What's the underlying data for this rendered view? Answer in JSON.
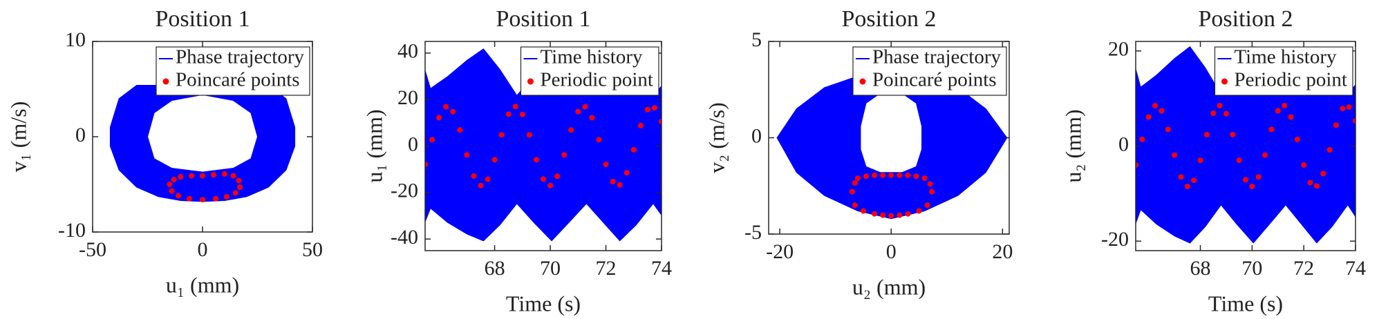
{
  "chart_data": [
    {
      "type": "phase",
      "title": "Position 1",
      "xlabel": "u₁ (mm)",
      "ylabel": "v₁ (m/s)",
      "xlim": [
        -50,
        50
      ],
      "ylim": [
        -10,
        10
      ],
      "xticks": [
        -50,
        0,
        50
      ],
      "yticks": [
        -10,
        0,
        10
      ],
      "legend": "upper right",
      "series": [
        {
          "name": "Phase trajectory",
          "color": "#0000ff",
          "style": "region",
          "x": [
            -30,
            -38,
            -42,
            -42,
            -38,
            -30,
            -20,
            -10,
            0,
            10,
            20,
            30,
            38,
            42,
            42,
            38,
            30,
            null,
            -25,
            -22,
            -14,
            0,
            14,
            22,
            25,
            22,
            14,
            0,
            -14,
            -22
          ],
          "values": [
            5.4,
            4,
            1,
            -1,
            -3.5,
            -5.3,
            -6.3,
            -6.7,
            -6.8,
            -6.7,
            -6.3,
            -5.3,
            -3.5,
            -1,
            1,
            4,
            5.4,
            null,
            0,
            2.5,
            3.8,
            4.4,
            3.8,
            2.5,
            0,
            -2.3,
            -3.3,
            -3.7,
            -3.3,
            -2.3
          ]
        },
        {
          "name": "Poincaré points",
          "color": "#ff0000",
          "style": "points",
          "x": [
            -15,
            -13,
            -10,
            -5,
            0,
            5,
            10,
            14,
            16.5,
            17,
            15,
            11,
            6,
            0,
            -6,
            -11,
            -14
          ],
          "values": [
            -5,
            -4.5,
            -4.2,
            -4.1,
            -4.1,
            -4.0,
            -3.9,
            -4.1,
            -4.6,
            -5.3,
            -5.9,
            -6.3,
            -6.5,
            -6.6,
            -6.5,
            -6.2,
            -5.7
          ]
        }
      ]
    },
    {
      "type": "time",
      "title": "Position 1",
      "xlabel": "Time (s)",
      "ylabel": "u₁ (mm)",
      "xlim": [
        65.5,
        74
      ],
      "ylim": [
        -45,
        45
      ],
      "xticks": [
        68,
        70,
        72,
        74
      ],
      "yticks": [
        -40,
        -20,
        0,
        20,
        40
      ],
      "legend": "upper right",
      "series": [
        {
          "name": "Time history",
          "color": "#0000ff",
          "style": "region",
          "x": [
            65.5,
            65.7,
            66.3,
            67.0,
            67.6,
            68.2,
            68.8,
            69.4,
            70.05,
            70.6,
            71.3,
            71.9,
            72.5,
            73.1,
            73.7,
            74.0
          ],
          "values": [
            33,
            25,
            30,
            37,
            42,
            33,
            22,
            30,
            42,
            33,
            22,
            30,
            42,
            33,
            22,
            26
          ],
          "lower": [
            -33,
            -27,
            -33,
            -38,
            -41,
            -34,
            -25,
            -33,
            -41,
            -34,
            -25,
            -33,
            -41,
            -34,
            -25,
            -30
          ]
        },
        {
          "name": "Periodic point",
          "color": "#ff0000",
          "style": "points",
          "x": [
            65.5,
            65.75,
            66.0,
            66.25,
            66.5,
            66.75,
            67.0,
            67.25,
            67.5,
            67.75,
            68.0,
            68.25,
            68.5,
            68.75,
            69.0,
            69.25,
            69.5,
            69.75,
            70.0,
            70.25,
            70.5,
            70.75,
            71.0,
            71.25,
            71.5,
            71.75,
            72.0,
            72.25,
            72.5,
            72.75,
            73.0,
            73.25,
            73.5,
            73.75,
            74.0
          ],
          "values": [
            -7.9,
            2.7,
            12.2,
            16.9,
            14.8,
            6.9,
            -3.8,
            -12.9,
            -17.0,
            -14.3,
            -5.9,
            4.8,
            13.7,
            17,
            13.6,
            4.8,
            -5.9,
            -14.2,
            -17.0,
            -13.0,
            -3.8,
            6.9,
            14.8,
            16.9,
            12.2,
            2.7,
            -7.9,
            -15.3,
            -16.7,
            -11.5,
            -1.6,
            8.8,
            15.7,
            16.4,
            10.6
          ]
        }
      ]
    },
    {
      "type": "phase",
      "title": "Position 2",
      "xlabel": "u₂ (mm)",
      "ylabel": "v₂ (m/s)",
      "xlim": [
        -22,
        21.2
      ],
      "ylim": [
        -5,
        5
      ],
      "xticks": [
        -20,
        0,
        20
      ],
      "yticks": [
        -5,
        0,
        5
      ],
      "legend": "upper right",
      "series": [
        {
          "name": "Phase trajectory",
          "color": "#0000ff",
          "style": "region",
          "x": [
            -20.5,
            -17,
            -12,
            -6,
            0,
            6,
            12,
            17,
            20.8,
            17,
            12,
            6,
            0,
            -6,
            -12,
            -17,
            null,
            -5.5,
            -4.5,
            -2,
            2,
            4.5,
            5.5,
            5.5,
            4.5,
            2,
            -2,
            -4.5,
            -5.5
          ],
          "values": [
            0,
            1.5,
            2.6,
            3.2,
            3.4,
            3.2,
            2.6,
            1.5,
            0,
            -1.8,
            -3.0,
            -3.8,
            -4.2,
            -3.8,
            -3.0,
            -1.8,
            null,
            0.6,
            1.8,
            2.3,
            2.3,
            1.8,
            0.6,
            -0.6,
            -1.5,
            -1.8,
            -1.8,
            -1.5,
            -0.6
          ]
        },
        {
          "name": "Poincaré points",
          "color": "#ff0000",
          "style": "points",
          "x": [
            -7,
            -6.5,
            -6,
            -4.5,
            -3,
            -1.5,
            0,
            1.5,
            3,
            4.5,
            6,
            7,
            7.3,
            6.5,
            5,
            3,
            1.5,
            0,
            -1.5,
            -3,
            -5,
            -6.5
          ],
          "values": [
            -2.8,
            -2.35,
            -2.1,
            -2.0,
            -1.95,
            -1.95,
            -1.95,
            -1.95,
            -1.95,
            -2.0,
            -2.1,
            -2.4,
            -2.8,
            -3.5,
            -3.8,
            -3.95,
            -4.02,
            -4.05,
            -4.02,
            -3.95,
            -3.8,
            -3.5
          ]
        }
      ]
    },
    {
      "type": "time",
      "title": "Position 2",
      "xlabel": "Time (s)",
      "ylabel": "u₂ (mm)",
      "xlim": [
        65.5,
        74
      ],
      "ylim": [
        -22,
        22
      ],
      "xticks": [
        68,
        70,
        72,
        74
      ],
      "yticks": [
        -20,
        0,
        20
      ],
      "legend": "upper right",
      "series": [
        {
          "name": "Time history",
          "color": "#0000ff",
          "style": "region",
          "x": [
            65.5,
            65.7,
            66.3,
            67.0,
            67.6,
            68.2,
            68.8,
            69.4,
            70.05,
            70.6,
            71.3,
            71.9,
            72.5,
            73.1,
            73.7,
            74.0
          ],
          "values": [
            16.5,
            12.5,
            15,
            18.5,
            21,
            16.5,
            11,
            15,
            21,
            16.5,
            11,
            15,
            21,
            16.5,
            11,
            13
          ],
          "lower": [
            -16.5,
            -13.5,
            -16.5,
            -19,
            -20.5,
            -17,
            -12.5,
            -16.5,
            -20.5,
            -17,
            -12.5,
            -16.5,
            -20.5,
            -17,
            -12.5,
            -15
          ]
        },
        {
          "name": "Periodic point",
          "color": "#ff0000",
          "style": "points",
          "x": [
            65.5,
            65.75,
            66.0,
            66.25,
            66.5,
            66.75,
            67.0,
            67.25,
            67.5,
            67.75,
            68.0,
            68.25,
            68.5,
            68.75,
            69.0,
            69.25,
            69.5,
            69.75,
            70.0,
            70.25,
            70.5,
            70.75,
            71.0,
            71.25,
            71.5,
            71.75,
            72.0,
            72.25,
            72.5,
            72.75,
            73.0,
            73.25,
            73.5,
            73.75,
            74.0
          ],
          "values": [
            -4.0,
            1.4,
            6.1,
            8.5,
            7.4,
            3.5,
            -1.9,
            -6.5,
            -8.5,
            -7.2,
            -3.0,
            2.4,
            6.9,
            8.5,
            6.8,
            2.4,
            -3.0,
            -7.1,
            -8.5,
            -6.5,
            -1.9,
            3.5,
            7.4,
            8.5,
            6.1,
            1.4,
            -4.0,
            -7.7,
            -8.4,
            -5.8,
            -0.8,
            4.4,
            7.9,
            8.2,
            5.3
          ]
        }
      ]
    }
  ]
}
